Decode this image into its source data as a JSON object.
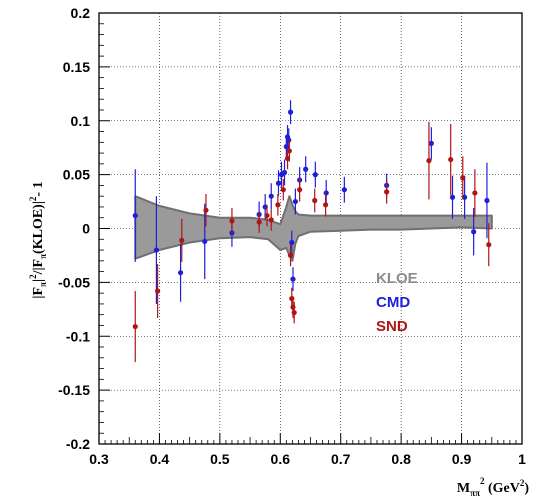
{
  "chart_data": {
    "type": "scatter",
    "xlim": [
      0.3,
      1.0
    ],
    "ylim": [
      -0.2,
      0.2
    ],
    "x_ticks": [
      "0.3",
      "0.4",
      "0.5",
      "0.6",
      "0.7",
      "0.8",
      "0.9",
      "1"
    ],
    "x_tick_values": [
      0.3,
      0.4,
      0.5,
      0.6,
      0.7,
      0.8,
      0.9,
      1.0
    ],
    "y_ticks": [
      "-0.2",
      "-0.15",
      "-0.1",
      "-0.05",
      "0",
      "0.05",
      "0.1",
      "0.15",
      "0.2"
    ],
    "y_tick_values": [
      -0.2,
      -0.15,
      -0.1,
      -0.05,
      0,
      0.05,
      0.1,
      0.15,
      0.2
    ],
    "grid": true,
    "xlabel": {
      "main": "M",
      "sub": "ππ",
      "sup": "2",
      "rest": " (GeV",
      "rest_sup": "2",
      "close": ")"
    },
    "ylabel": {
      "p1": "|F",
      "sub1": "π",
      "p2": "|",
      "sup1": "2",
      "p3": "/|F",
      "sub2": "π",
      "p4": "(KLOE)|",
      "sup2": "2",
      "p5": "- 1"
    },
    "legend": {
      "position": "lower-right",
      "entries": [
        {
          "name": "KLOE",
          "color": "#8c8c8c"
        },
        {
          "name": "CMD",
          "color": "#1f1fd8"
        },
        {
          "name": "SND",
          "color": "#b01414"
        }
      ]
    },
    "band": {
      "name": "KLOE",
      "color": "#9a9a9a",
      "edge_color": "#707070",
      "x": [
        0.36,
        0.4,
        0.45,
        0.5,
        0.55,
        0.58,
        0.6,
        0.61,
        0.615,
        0.62,
        0.625,
        0.63,
        0.65,
        0.7,
        0.75,
        0.8,
        0.85,
        0.9,
        0.95
      ],
      "upper": [
        0.03,
        0.021,
        0.014,
        0.01,
        0.01,
        0.008,
        0.004,
        0.02,
        0.03,
        0.022,
        0.016,
        0.013,
        0.012,
        0.012,
        0.012,
        0.012,
        0.012,
        0.012,
        0.012
      ],
      "lower": [
        -0.028,
        -0.02,
        -0.013,
        -0.009,
        -0.008,
        -0.01,
        -0.02,
        -0.018,
        -0.025,
        -0.03,
        -0.014,
        -0.007,
        -0.003,
        -0.002,
        -0.001,
        -0.001,
        0.0,
        0.001,
        0.0
      ]
    },
    "series": [
      {
        "name": "CMD",
        "color": "#1f1fd8",
        "points": [
          {
            "x": 0.36,
            "y": 0.012,
            "e": 0.043
          },
          {
            "x": 0.395,
            "y": -0.02,
            "e": 0.05
          },
          {
            "x": 0.435,
            "y": -0.041,
            "e": 0.027
          },
          {
            "x": 0.475,
            "y": -0.012,
            "e": 0.035
          },
          {
            "x": 0.52,
            "y": -0.004,
            "e": 0.013
          },
          {
            "x": 0.565,
            "y": 0.013,
            "e": 0.012
          },
          {
            "x": 0.575,
            "y": 0.02,
            "e": 0.012
          },
          {
            "x": 0.585,
            "y": 0.03,
            "e": 0.012
          },
          {
            "x": 0.597,
            "y": 0.042,
            "e": 0.012
          },
          {
            "x": 0.602,
            "y": 0.05,
            "e": 0.012
          },
          {
            "x": 0.607,
            "y": 0.052,
            "e": 0.012
          },
          {
            "x": 0.61,
            "y": 0.076,
            "e": 0.011
          },
          {
            "x": 0.612,
            "y": 0.085,
            "e": 0.011
          },
          {
            "x": 0.614,
            "y": 0.082,
            "e": 0.011
          },
          {
            "x": 0.617,
            "y": 0.108,
            "e": 0.011
          },
          {
            "x": 0.619,
            "y": -0.013,
            "e": 0.011
          },
          {
            "x": 0.621,
            "y": -0.047,
            "e": 0.011
          },
          {
            "x": 0.625,
            "y": 0.025,
            "e": 0.012
          },
          {
            "x": 0.632,
            "y": 0.045,
            "e": 0.012
          },
          {
            "x": 0.642,
            "y": 0.055,
            "e": 0.012
          },
          {
            "x": 0.658,
            "y": 0.05,
            "e": 0.012
          },
          {
            "x": 0.676,
            "y": 0.033,
            "e": 0.012
          },
          {
            "x": 0.706,
            "y": 0.036,
            "e": 0.012
          },
          {
            "x": 0.776,
            "y": 0.04,
            "e": 0.011
          },
          {
            "x": 0.85,
            "y": 0.079,
            "e": 0.015
          },
          {
            "x": 0.885,
            "y": 0.029,
            "e": 0.02
          },
          {
            "x": 0.905,
            "y": 0.029,
            "e": 0.02
          },
          {
            "x": 0.92,
            "y": -0.003,
            "e": 0.022
          },
          {
            "x": 0.942,
            "y": 0.026,
            "e": 0.035
          }
        ]
      },
      {
        "name": "SND",
        "color": "#b01414",
        "points": [
          {
            "x": 0.36,
            "y": -0.091,
            "e": 0.033
          },
          {
            "x": 0.397,
            "y": -0.058,
            "e": 0.025
          },
          {
            "x": 0.437,
            "y": -0.011,
            "e": 0.02
          },
          {
            "x": 0.477,
            "y": 0.017,
            "e": 0.015
          },
          {
            "x": 0.52,
            "y": 0.007,
            "e": 0.012
          },
          {
            "x": 0.565,
            "y": 0.006,
            "e": 0.01
          },
          {
            "x": 0.578,
            "y": 0.012,
            "e": 0.01
          },
          {
            "x": 0.585,
            "y": 0.008,
            "e": 0.01
          },
          {
            "x": 0.596,
            "y": 0.022,
            "e": 0.01
          },
          {
            "x": 0.605,
            "y": 0.036,
            "e": 0.01
          },
          {
            "x": 0.612,
            "y": 0.065,
            "e": 0.01
          },
          {
            "x": 0.615,
            "y": 0.072,
            "e": 0.01
          },
          {
            "x": 0.617,
            "y": -0.025,
            "e": 0.01
          },
          {
            "x": 0.619,
            "y": -0.065,
            "e": 0.01
          },
          {
            "x": 0.621,
            "y": -0.073,
            "e": 0.01
          },
          {
            "x": 0.623,
            "y": -0.078,
            "e": 0.01
          },
          {
            "x": 0.632,
            "y": 0.036,
            "e": 0.011
          },
          {
            "x": 0.657,
            "y": 0.026,
            "e": 0.011
          },
          {
            "x": 0.675,
            "y": 0.022,
            "e": 0.011
          },
          {
            "x": 0.776,
            "y": 0.034,
            "e": 0.011
          },
          {
            "x": 0.846,
            "y": 0.063,
            "e": 0.036
          },
          {
            "x": 0.882,
            "y": 0.064,
            "e": 0.033
          },
          {
            "x": 0.902,
            "y": 0.047,
            "e": 0.02
          },
          {
            "x": 0.922,
            "y": 0.033,
            "e": 0.022
          },
          {
            "x": 0.945,
            "y": -0.015,
            "e": 0.02
          }
        ]
      }
    ]
  }
}
